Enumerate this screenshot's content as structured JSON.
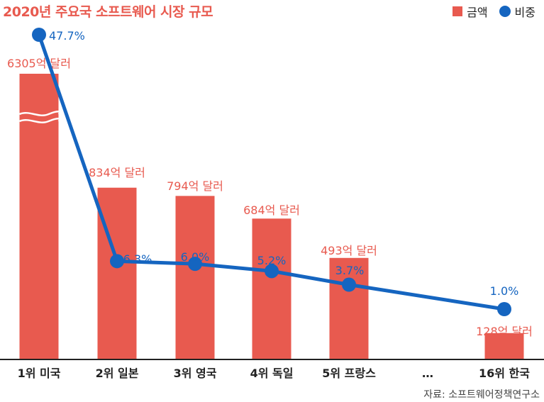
{
  "title": "2020년 주요국 소프트웨어 시장 규모",
  "legend": {
    "amount": "금액",
    "share": "비중"
  },
  "source": "자료: 소프트웨어정책연구소",
  "colors": {
    "bar": "#e85a4f",
    "line": "#1565c0"
  },
  "chart_data": {
    "type": "bar",
    "categories": [
      "1위 미국",
      "2위 일본",
      "3위 영국",
      "4위 독일",
      "5위 프랑스",
      "…",
      "16위 한국"
    ],
    "series": [
      {
        "name": "금액",
        "values": [
          6305,
          834,
          794,
          684,
          493,
          null,
          128
        ],
        "labels": [
          "6305억 달러",
          "834억 달러",
          "794억 달러",
          "684억 달러",
          "493억 달러",
          "",
          "128억 달러"
        ]
      },
      {
        "name": "비중",
        "type": "line",
        "values": [
          47.7,
          6.3,
          6.0,
          5.2,
          3.7,
          null,
          1.0
        ],
        "labels": [
          "47.7%",
          "6.3%",
          "6.0%",
          "5.2%",
          "3.7%",
          "",
          "1.0%"
        ]
      }
    ],
    "axis_break": true,
    "ylim": [
      0,
      1000
    ]
  }
}
